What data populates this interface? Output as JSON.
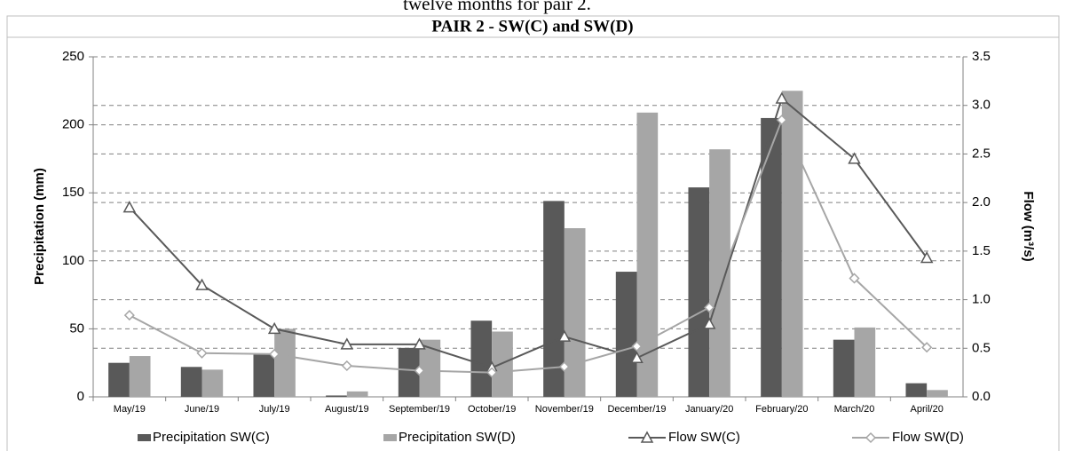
{
  "caption": "twelve months for pair 2.",
  "chart_data": {
    "type": "bar-line",
    "title": "PAIR 2 - SW(C) and SW(D)",
    "categories": [
      "May/19",
      "June/19",
      "July/19",
      "August/19",
      "September/19",
      "October/19",
      "November/19",
      "December/19",
      "January/20",
      "February/20",
      "March/20",
      "April/20"
    ],
    "series": [
      {
        "name": "Precipitation SW(C)",
        "type": "bar",
        "color": "#595959",
        "values": [
          25,
          22,
          32,
          1,
          36,
          56,
          144,
          92,
          154,
          205,
          42,
          10
        ]
      },
      {
        "name": "Precipitation SW(D)",
        "type": "bar",
        "color": "#a6a6a6",
        "values": [
          30,
          20,
          50,
          4,
          42,
          48,
          124,
          209,
          182,
          225,
          51,
          5
        ]
      },
      {
        "name": "Flow SW(C)",
        "type": "line",
        "marker": "triangle",
        "axis": "y2",
        "color": "#595959",
        "values": [
          1.95,
          1.15,
          0.7,
          0.54,
          0.54,
          0.3,
          0.62,
          0.4,
          0.75,
          3.07,
          2.45,
          1.43
        ]
      },
      {
        "name": "Flow SW(D)",
        "type": "line",
        "marker": "diamond",
        "axis": "y2",
        "color": "#a6a6a6",
        "values": [
          0.84,
          0.45,
          0.44,
          0.32,
          0.27,
          0.25,
          0.31,
          0.52,
          0.92,
          2.85,
          1.22,
          0.51
        ]
      }
    ],
    "ylabel": "Precipitation (mm)",
    "y2label": "Flow (m³/s)",
    "ylim": [
      0,
      250
    ],
    "yticks": [
      0,
      50,
      100,
      150,
      200,
      250
    ],
    "y2lim": [
      0,
      3.5
    ],
    "y2ticks": [
      {
        "value": 0,
        "label": "0.0"
      },
      0.5,
      {
        "value": 1,
        "label": "1.0"
      },
      1.5,
      {
        "value": 2,
        "label": "2.0"
      },
      2.5,
      {
        "value": 3,
        "label": "3.0"
      },
      3.5
    ],
    "grid": true,
    "legend": "bottom"
  }
}
